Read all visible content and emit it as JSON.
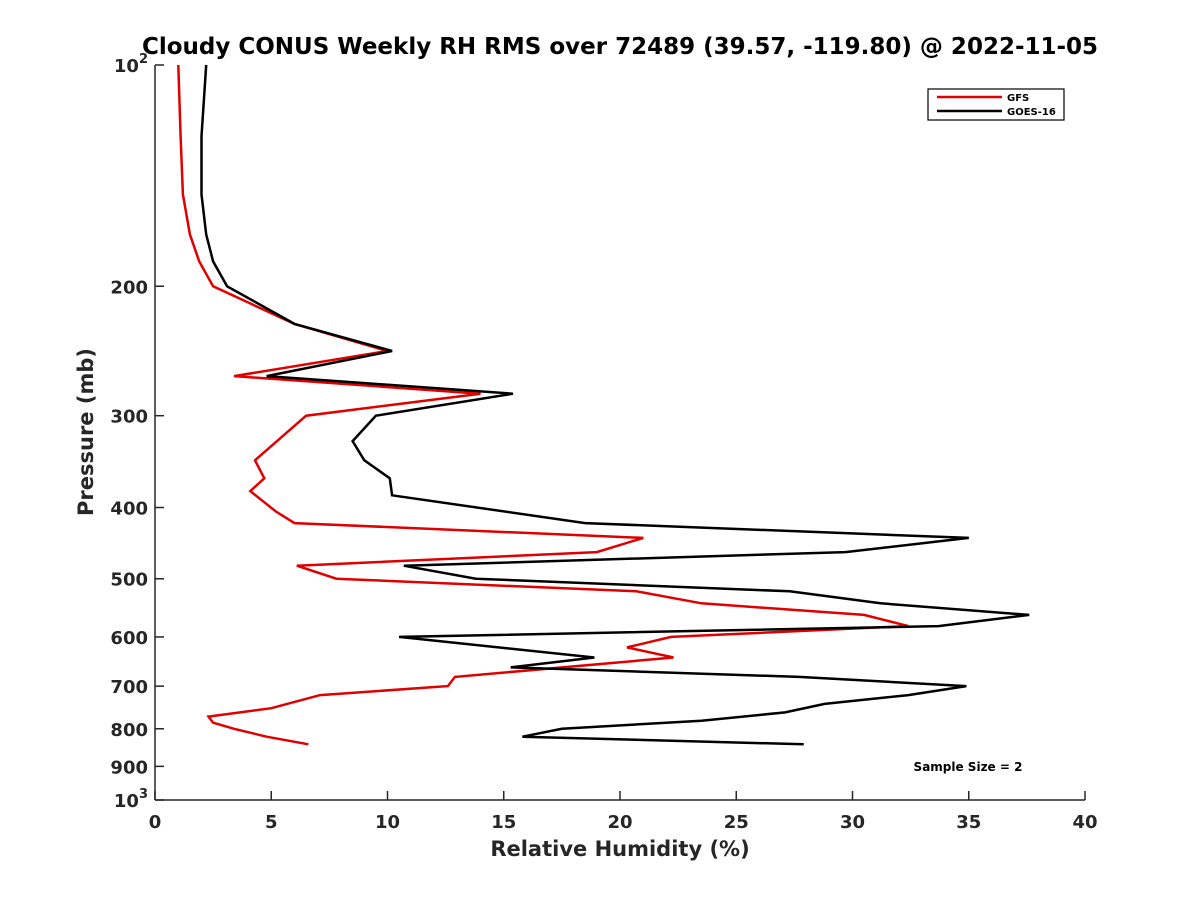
{
  "chart_data": {
    "type": "line",
    "title": "Cloudy CONUS Weekly RH RMS over 72489 (39.57, -119.80) @ 2022-11-05",
    "xlabel": "Relative Humidity (%)",
    "ylabel": "Pressure (mb)",
    "xlim": [
      0,
      40
    ],
    "ylim": [
      100,
      1000
    ],
    "y_scale": "log",
    "y_reversed": true,
    "x_ticks": [
      "0",
      "5",
      "10",
      "15",
      "20",
      "25",
      "30",
      "35",
      "40"
    ],
    "y_ticks": [
      {
        "value": 100,
        "base": "10",
        "exp": "2"
      },
      {
        "value": 200,
        "label": "200"
      },
      {
        "value": 300,
        "label": "300"
      },
      {
        "value": 400,
        "label": "400"
      },
      {
        "value": 500,
        "label": "500"
      },
      {
        "value": 600,
        "label": "600"
      },
      {
        "value": 700,
        "label": "700"
      },
      {
        "value": 800,
        "label": "800"
      },
      {
        "value": 900,
        "label": "900"
      },
      {
        "value": 1000,
        "base": "10",
        "exp": "3"
      }
    ],
    "legend_position": "top-right",
    "annotation": "Sample Size = 2",
    "grid": false,
    "series": [
      {
        "name": "GFS",
        "color": "#e00000",
        "x": [
          1.0,
          1.1,
          1.2,
          1.5,
          1.9,
          2.5,
          6.0,
          10.0,
          3.4,
          14.0,
          6.5,
          4.3,
          4.7,
          4.1,
          5.2,
          6.0,
          21.0,
          19.0,
          6.1,
          7.8,
          20.7,
          23.5,
          30.5,
          32.4,
          22.2,
          20.3,
          22.3,
          12.9,
          12.6,
          7.1,
          5.0,
          2.3,
          2.5,
          3.4,
          4.8,
          6.6
        ],
        "y": [
          100,
          125,
          150,
          170,
          185,
          200,
          225,
          245,
          265,
          280,
          300,
          345,
          365,
          380,
          405,
          420,
          440,
          460,
          480,
          500,
          520,
          540,
          560,
          580,
          600,
          620,
          640,
          680,
          700,
          720,
          750,
          770,
          785,
          800,
          820,
          840
        ]
      },
      {
        "name": "GOES-16",
        "color": "#000000",
        "x": [
          2.2,
          2.0,
          2.0,
          2.2,
          2.5,
          3.1,
          6.0,
          10.2,
          4.8,
          15.4,
          9.5,
          8.5,
          9.0,
          10.1,
          10.2,
          18.5,
          35.0,
          29.7,
          10.7,
          13.8,
          27.3,
          31.2,
          37.6,
          33.7,
          10.5,
          18.9,
          15.3,
          27.7,
          34.9,
          32.4,
          28.8,
          27.1,
          23.5,
          17.5,
          15.8,
          27.9
        ],
        "y": [
          100,
          125,
          150,
          170,
          185,
          200,
          225,
          245,
          265,
          280,
          300,
          325,
          345,
          365,
          385,
          420,
          440,
          460,
          480,
          500,
          520,
          540,
          560,
          580,
          600,
          640,
          660,
          680,
          700,
          720,
          740,
          760,
          780,
          800,
          820,
          840
        ]
      }
    ]
  }
}
